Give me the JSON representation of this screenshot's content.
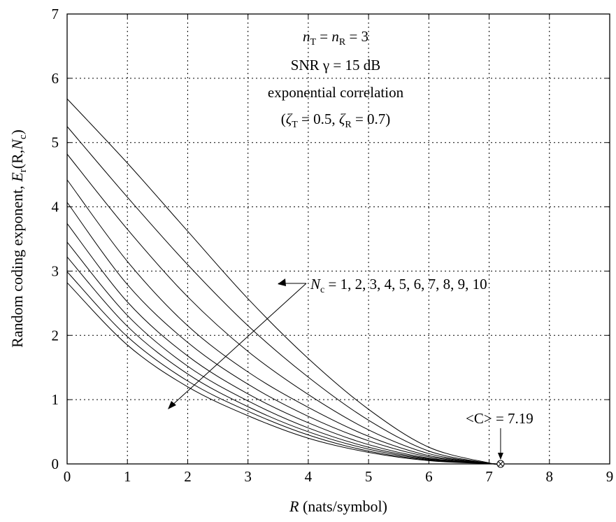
{
  "chart_data": {
    "type": "line",
    "xlabel": {
      "var": "R",
      "rest": " (nats/symbol)"
    },
    "ylabel": {
      "text": "Random coding exponent, ",
      "var1": "E",
      "sub1": "r",
      "mid": "(R,",
      "var2": "N",
      "sub2": "c",
      "end": ")"
    },
    "xlim": [
      0,
      9
    ],
    "ylim": [
      0,
      7
    ],
    "xticks": [
      "0",
      "1",
      "2",
      "3",
      "4",
      "5",
      "6",
      "7",
      "8",
      "9"
    ],
    "yticks": [
      "0",
      "1",
      "2",
      "3",
      "4",
      "5",
      "6",
      "7"
    ],
    "grid": true,
    "annotations": {
      "line1": {
        "n1": "n",
        "s1": "T",
        "eq": " = ",
        "n2": "n",
        "s2": "R",
        "val": " = 3"
      },
      "line2": "SNR γ = 15 dB",
      "line3": "exponential correlation",
      "line4": {
        "open": "(",
        "z1": "ζ",
        "s1": "T",
        "v1": " = 0.5, ",
        "z2": "ζ",
        "s2": "R",
        "v2": " = 0.7)"
      },
      "nc_label": {
        "var": "N",
        "sub": "c",
        "rest": " = 1, 2, 3, 4, 5, 6, 7, 8, 9, 10"
      },
      "capacity_label": "<C> = 7.19",
      "capacity_value": 7.19
    },
    "series": [
      {
        "x": [
          0,
          1,
          2,
          3,
          4,
          5,
          6,
          7,
          7.19
        ],
        "y": [
          2.82,
          1.85,
          1.2,
          0.75,
          0.4,
          0.18,
          0.05,
          0.005,
          0
        ]
      },
      {
        "x": [
          0,
          1,
          2,
          3,
          4,
          5,
          6,
          7,
          7.19
        ],
        "y": [
          2.99,
          1.98,
          1.29,
          0.82,
          0.45,
          0.2,
          0.06,
          0.005,
          0
        ]
      },
      {
        "x": [
          0,
          1,
          2,
          3,
          4,
          5,
          6,
          7,
          7.19
        ],
        "y": [
          3.22,
          2.14,
          1.4,
          0.89,
          0.5,
          0.23,
          0.07,
          0.005,
          0
        ]
      },
      {
        "x": [
          0,
          1,
          2,
          3,
          4,
          5,
          6,
          7,
          7.19
        ],
        "y": [
          3.45,
          2.31,
          1.52,
          0.98,
          0.56,
          0.26,
          0.08,
          0.006,
          0
        ]
      },
      {
        "x": [
          0,
          1,
          2,
          3,
          4,
          5,
          6,
          7,
          7.19
        ],
        "y": [
          3.74,
          2.52,
          1.68,
          1.09,
          0.64,
          0.3,
          0.09,
          0.007,
          0
        ]
      },
      {
        "x": [
          0,
          1,
          2,
          3,
          4,
          5,
          6,
          7,
          7.19
        ],
        "y": [
          4.07,
          2.79,
          1.89,
          1.24,
          0.74,
          0.36,
          0.11,
          0.008,
          0
        ]
      },
      {
        "x": [
          0,
          1,
          2,
          3,
          4,
          5,
          6,
          7,
          7.19
        ],
        "y": [
          4.42,
          3.15,
          2.15,
          1.43,
          0.88,
          0.43,
          0.13,
          0.009,
          0
        ]
      },
      {
        "x": [
          0,
          1,
          2,
          3,
          4,
          5,
          6,
          7,
          7.19
        ],
        "y": [
          4.82,
          3.65,
          2.6,
          1.75,
          1.08,
          0.53,
          0.16,
          0.01,
          0
        ]
      },
      {
        "x": [
          0,
          1,
          2,
          3,
          4,
          5,
          6,
          7,
          7.19
        ],
        "y": [
          5.25,
          4.15,
          3.1,
          2.15,
          1.35,
          0.68,
          0.2,
          0.01,
          0
        ]
      },
      {
        "x": [
          0,
          1,
          2,
          3,
          4,
          5,
          6,
          7,
          7.19
        ],
        "y": [
          5.68,
          4.68,
          3.62,
          2.57,
          1.64,
          0.85,
          0.26,
          0.015,
          0
        ]
      }
    ]
  }
}
